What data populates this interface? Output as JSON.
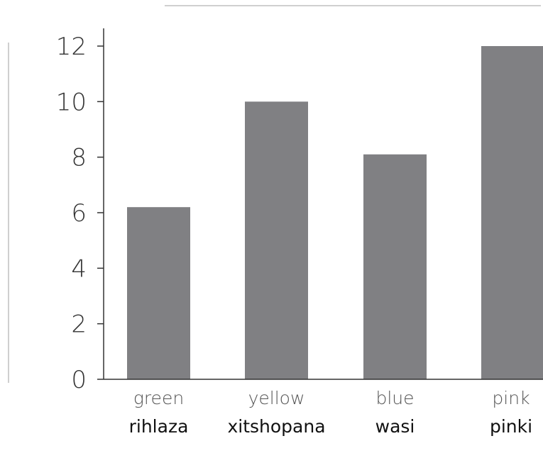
{
  "chart_data": {
    "type": "bar",
    "categories": [
      "green",
      "yellow",
      "blue",
      "pink"
    ],
    "categories_secondary": [
      "rihlaza",
      "xitshopana",
      "wasi",
      "pinki"
    ],
    "values": [
      6.2,
      10,
      8.1,
      12
    ],
    "title": "",
    "xlabel": "",
    "ylabel": "",
    "ylim": [
      0,
      12
    ],
    "yticks": [
      0,
      2,
      4,
      6,
      8,
      10,
      12
    ],
    "ytick_labels": [
      "0",
      "2",
      "4",
      "6",
      "8",
      "10",
      "12"
    ],
    "grid": false,
    "colors": {
      "bar": "#808083",
      "axis": "#333333",
      "decoration": "#bfbfbf"
    }
  }
}
